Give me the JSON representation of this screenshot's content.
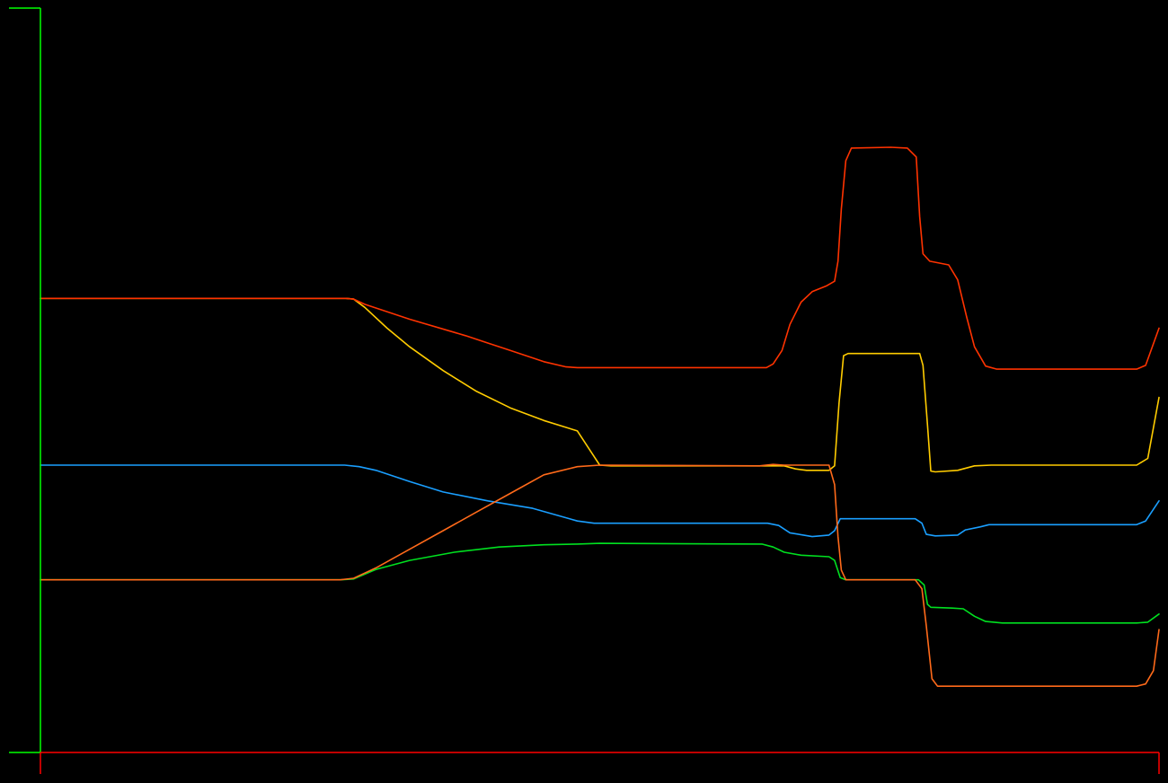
{
  "chart_data": {
    "type": "line",
    "title": "",
    "xlabel": "",
    "ylabel": "",
    "grid": false,
    "legend": "none",
    "xlim": [
      0,
      100
    ],
    "ylim": [
      0,
      100
    ],
    "axis_colors": {
      "x": "#ff0000",
      "y": "#00ff00"
    },
    "series": [
      {
        "color": "#ff3300",
        "points": [
          [
            0,
            61
          ],
          [
            27.3,
            61
          ],
          [
            28,
            60.9
          ],
          [
            29,
            60.2
          ],
          [
            33,
            58.2
          ],
          [
            38,
            56
          ],
          [
            42,
            54
          ],
          [
            45,
            52.5
          ],
          [
            47,
            51.8
          ],
          [
            48,
            51.7
          ],
          [
            64.9,
            51.7
          ],
          [
            65.5,
            52.2
          ],
          [
            66.3,
            54
          ],
          [
            67,
            57.5
          ],
          [
            68,
            60.5
          ],
          [
            69,
            61.9
          ],
          [
            70.3,
            62.7
          ],
          [
            71,
            63.3
          ],
          [
            71.3,
            66
          ],
          [
            71.6,
            73
          ],
          [
            72,
            79.5
          ],
          [
            72.5,
            81.2
          ],
          [
            76,
            81.3
          ],
          [
            77.5,
            81.2
          ],
          [
            78.3,
            80
          ],
          [
            78.6,
            72
          ],
          [
            78.9,
            67
          ],
          [
            79.5,
            66
          ],
          [
            81.2,
            65.5
          ],
          [
            82,
            63.5
          ],
          [
            82.8,
            58.5
          ],
          [
            83.5,
            54.5
          ],
          [
            84.5,
            51.9
          ],
          [
            85.5,
            51.5
          ],
          [
            98,
            51.5
          ],
          [
            98.8,
            52
          ],
          [
            100,
            57
          ]
        ]
      },
      {
        "color": "#ffcc00",
        "points": [
          [
            0,
            61
          ],
          [
            27.3,
            61
          ],
          [
            28,
            60.9
          ],
          [
            29,
            59.8
          ],
          [
            31,
            57
          ],
          [
            33,
            54.5
          ],
          [
            36,
            51.3
          ],
          [
            39,
            48.5
          ],
          [
            42,
            46.3
          ],
          [
            45,
            44.6
          ],
          [
            48,
            43.2
          ],
          [
            50,
            38.6
          ],
          [
            51,
            38.5
          ],
          [
            66.5,
            38.5
          ],
          [
            67.5,
            38.1
          ],
          [
            68.5,
            37.9
          ],
          [
            70.5,
            37.9
          ],
          [
            71,
            38.5
          ],
          [
            71.4,
            47
          ],
          [
            71.8,
            53.3
          ],
          [
            72.2,
            53.6
          ],
          [
            78.6,
            53.6
          ],
          [
            78.9,
            52
          ],
          [
            79.3,
            44
          ],
          [
            79.6,
            37.8
          ],
          [
            80,
            37.7
          ],
          [
            82,
            37.9
          ],
          [
            83.5,
            38.5
          ],
          [
            85,
            38.6
          ],
          [
            98,
            38.6
          ],
          [
            99,
            39.5
          ],
          [
            100,
            47.7
          ]
        ]
      },
      {
        "color": "#1a9fff",
        "points": [
          [
            0,
            38.6
          ],
          [
            27.2,
            38.6
          ],
          [
            28.5,
            38.4
          ],
          [
            30,
            37.9
          ],
          [
            33,
            36.4
          ],
          [
            36,
            35
          ],
          [
            40,
            33.8
          ],
          [
            44,
            32.8
          ],
          [
            48,
            31.1
          ],
          [
            49.5,
            30.8
          ],
          [
            65,
            30.8
          ],
          [
            66,
            30.5
          ],
          [
            67,
            29.5
          ],
          [
            69,
            29
          ],
          [
            70.5,
            29.2
          ],
          [
            71,
            29.8
          ],
          [
            71.5,
            31.4
          ],
          [
            72,
            31.4
          ],
          [
            78.2,
            31.4
          ],
          [
            78.8,
            30.8
          ],
          [
            79.2,
            29.3
          ],
          [
            80,
            29.1
          ],
          [
            82,
            29.2
          ],
          [
            82.7,
            29.9
          ],
          [
            84,
            30.3
          ],
          [
            84.8,
            30.6
          ],
          [
            98,
            30.6
          ],
          [
            98.8,
            31.1
          ],
          [
            100,
            33.8
          ]
        ]
      },
      {
        "color": "#00e020",
        "points": [
          [
            0,
            23.2
          ],
          [
            26.8,
            23.2
          ],
          [
            28,
            23.3
          ],
          [
            30,
            24.6
          ],
          [
            33,
            25.8
          ],
          [
            37,
            26.9
          ],
          [
            41,
            27.6
          ],
          [
            45,
            27.9
          ],
          [
            48,
            28
          ],
          [
            50,
            28.1
          ],
          [
            64.5,
            28
          ],
          [
            65.5,
            27.6
          ],
          [
            66.5,
            26.9
          ],
          [
            68,
            26.5
          ],
          [
            70.5,
            26.3
          ],
          [
            71,
            25.8
          ],
          [
            71.5,
            23.5
          ],
          [
            72,
            23.2
          ],
          [
            78.5,
            23.2
          ],
          [
            79,
            22.5
          ],
          [
            79.3,
            19.9
          ],
          [
            79.6,
            19.5
          ],
          [
            81.5,
            19.4
          ],
          [
            82.5,
            19.3
          ],
          [
            83.5,
            18.3
          ],
          [
            84.5,
            17.6
          ],
          [
            86,
            17.4
          ],
          [
            98,
            17.4
          ],
          [
            99,
            17.5
          ],
          [
            100,
            18.6
          ]
        ]
      },
      {
        "color": "#ff6a1a",
        "points": [
          [
            0,
            23.2
          ],
          [
            26.8,
            23.2
          ],
          [
            28,
            23.4
          ],
          [
            30,
            24.8
          ],
          [
            33,
            27.3
          ],
          [
            36,
            29.8
          ],
          [
            39,
            32.3
          ],
          [
            42,
            34.8
          ],
          [
            45,
            37.3
          ],
          [
            48,
            38.4
          ],
          [
            50,
            38.6
          ],
          [
            64.3,
            38.5
          ],
          [
            65.5,
            38.7
          ],
          [
            66.5,
            38.6
          ],
          [
            70.5,
            38.6
          ],
          [
            71,
            36
          ],
          [
            71.3,
            29
          ],
          [
            71.6,
            24.5
          ],
          [
            72,
            23.2
          ],
          [
            78.2,
            23.2
          ],
          [
            78.8,
            22
          ],
          [
            79.2,
            17
          ],
          [
            79.7,
            9.9
          ],
          [
            80.2,
            8.9
          ],
          [
            98,
            8.9
          ],
          [
            98.8,
            9.2
          ],
          [
            99.5,
            11
          ],
          [
            100,
            16.5
          ]
        ]
      }
    ]
  }
}
